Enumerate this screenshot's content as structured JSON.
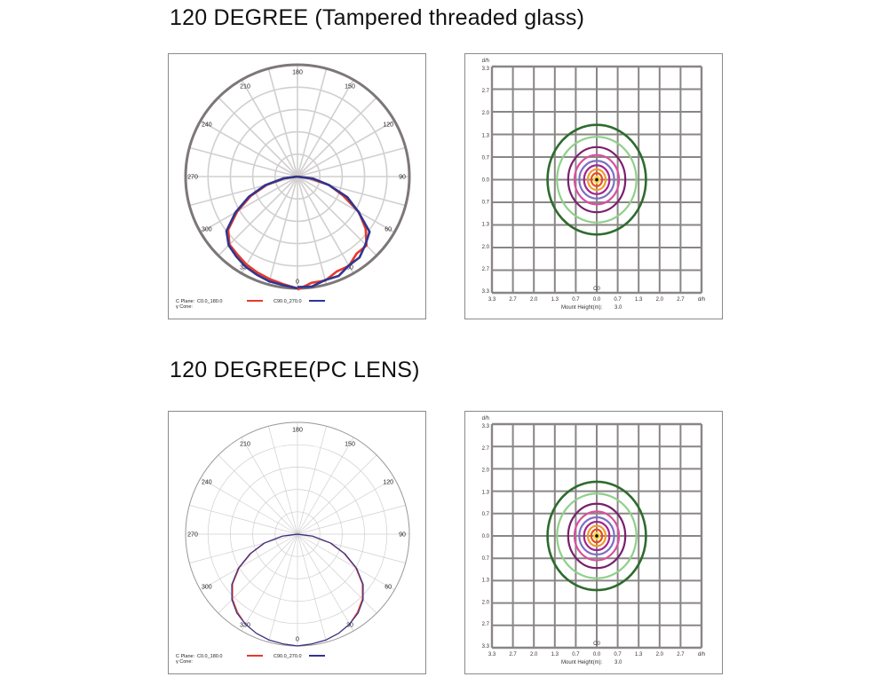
{
  "sections": [
    {
      "title": "120 DEGREE (Tampered threaded glass)"
    },
    {
      "title": "120 DEGREE(PC LENS)"
    }
  ],
  "colors": {
    "c0_series": "#e53a2b",
    "c90_series": "#2f3590",
    "grid": "#d2cfcf",
    "outer_ring": "#7d7777",
    "isolux": [
      "#2e6b2e",
      "#8fd08a",
      "#7b1f6e",
      "#d94fa0",
      "#7c6fc4",
      "#a0268f",
      "#f29a2e",
      "#e94e1b",
      "#ffd23f"
    ]
  },
  "legend": {
    "c_plane_label": "C Plane:",
    "gamma_label": "γ Cone:",
    "c0_label": "C0.0_180.0",
    "c90_label": "C90.0_270.0"
  },
  "isolux_labels": {
    "top_unit": "d/h",
    "plane_label": "C0",
    "mount_label": "Mount Height(m):",
    "mount_value": "3.0",
    "x_ticks": [
      "3.3",
      "2.7",
      "2.0",
      "1.3",
      "0.7",
      "0.0",
      "0.7",
      "1.3",
      "2.0",
      "2.7",
      "d/h"
    ],
    "y_ticks": [
      "3.3",
      "2.7",
      "2.0",
      "1.3",
      "0.7",
      "0.0",
      "0.7",
      "1.3",
      "2.0",
      "2.7",
      "3.3"
    ]
  },
  "chart_data": [
    {
      "type": "line",
      "subtype": "polar",
      "section": 0,
      "angle_labels": [
        "180",
        "150",
        "120",
        "90",
        "60",
        "30",
        "0",
        "330",
        "300",
        "270",
        "240",
        "210"
      ],
      "angle_label_values": [
        180,
        150,
        120,
        90,
        60,
        30,
        0,
        330,
        300,
        270,
        240,
        210
      ],
      "rmax": 1,
      "series": [
        {
          "values": [
            1.0,
            0.97,
            0.95,
            0.93,
            0.91,
            0.88,
            0.86,
            0.78,
            0.62,
            0.45,
            0.28,
            0.12,
            0.0
          ]
        },
        {
          "values": [
            1.0,
            0.98,
            0.97,
            0.95,
            0.93,
            0.9,
            0.87,
            0.8,
            0.64,
            0.47,
            0.3,
            0.13,
            0.0
          ]
        }
      ],
      "theta_deg": [
        0,
        7.5,
        15,
        22.5,
        30,
        37.5,
        45,
        52.5,
        60,
        67.5,
        75,
        82.5,
        90
      ]
    },
    {
      "type": "scatter",
      "subtype": "isolux",
      "section": 0,
      "x_range": [
        -3.3,
        3.3
      ],
      "y_range": [
        -3.3,
        3.3
      ],
      "contours": [
        {
          "rx": 1.55,
          "ry": 1.6
        },
        {
          "rx": 1.25,
          "ry": 1.25
        },
        {
          "rx": 0.9,
          "ry": 0.95
        },
        {
          "rx": 0.7,
          "ry": 0.72
        },
        {
          "rx": 0.55,
          "ry": 0.55
        },
        {
          "rx": 0.4,
          "ry": 0.42
        },
        {
          "rx": 0.28,
          "ry": 0.3
        },
        {
          "rx": 0.17,
          "ry": 0.19
        },
        {
          "rx": 0.08,
          "ry": 0.09
        }
      ]
    },
    {
      "type": "line",
      "subtype": "polar",
      "section": 1,
      "angle_labels": [
        "180",
        "150",
        "120",
        "90",
        "60",
        "30",
        "0",
        "330",
        "300",
        "270",
        "240",
        "210"
      ],
      "angle_label_values": [
        180,
        150,
        120,
        90,
        60,
        30,
        0,
        330,
        300,
        270,
        240,
        210
      ],
      "rmax": 1,
      "series": [
        {
          "values": [
            1.0,
            0.99,
            0.98,
            0.96,
            0.93,
            0.88,
            0.82,
            0.73,
            0.6,
            0.45,
            0.3,
            0.13,
            0.0
          ]
        },
        {
          "values": [
            1.0,
            0.99,
            0.98,
            0.96,
            0.93,
            0.89,
            0.83,
            0.74,
            0.61,
            0.46,
            0.31,
            0.14,
            0.0
          ]
        }
      ],
      "theta_deg": [
        0,
        7.5,
        15,
        22.5,
        30,
        37.5,
        45,
        52.5,
        60,
        67.5,
        75,
        82.5,
        90
      ]
    },
    {
      "type": "scatter",
      "subtype": "isolux",
      "section": 1,
      "x_range": [
        -3.3,
        3.3
      ],
      "y_range": [
        -3.3,
        3.3
      ],
      "contours": [
        {
          "rx": 1.55,
          "ry": 1.6
        },
        {
          "rx": 1.25,
          "ry": 1.25
        },
        {
          "rx": 0.9,
          "ry": 0.95
        },
        {
          "rx": 0.7,
          "ry": 0.72
        },
        {
          "rx": 0.55,
          "ry": 0.55
        },
        {
          "rx": 0.4,
          "ry": 0.42
        },
        {
          "rx": 0.28,
          "ry": 0.3
        },
        {
          "rx": 0.17,
          "ry": 0.19
        },
        {
          "rx": 0.08,
          "ry": 0.09
        }
      ]
    }
  ]
}
